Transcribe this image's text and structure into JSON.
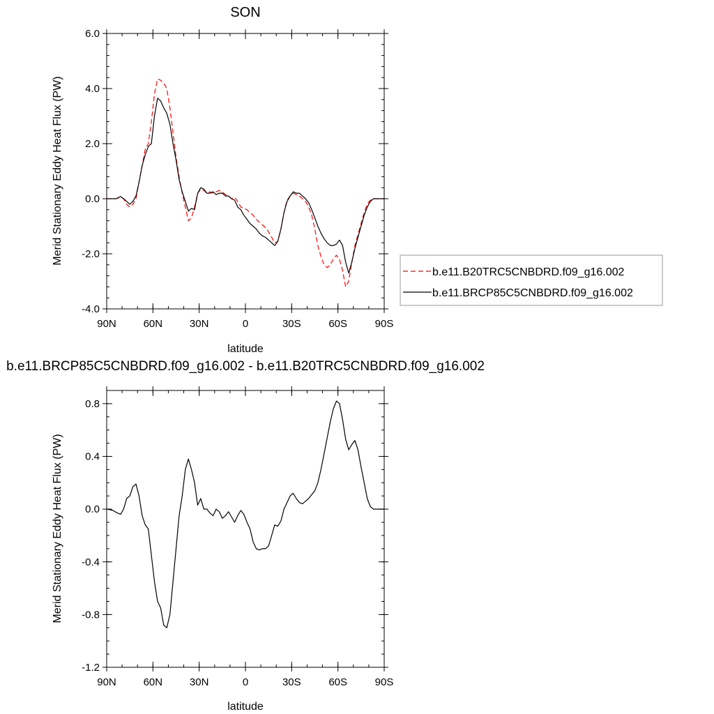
{
  "chart_data": [
    {
      "type": "line",
      "title": "SON",
      "xlabel": "latitude",
      "ylabel": "Merid Stationary Eddy Heat Flux (PW)",
      "xlim": [
        90,
        -90
      ],
      "ylim": [
        -4.0,
        6.0
      ],
      "x_ticks": [
        90,
        60,
        30,
        0,
        -30,
        -60,
        -90
      ],
      "x_tick_labels": [
        "90N",
        "60N",
        "30N",
        "0",
        "30S",
        "60S",
        "90S"
      ],
      "y_ticks": [
        -4,
        -2,
        0,
        2,
        4,
        6
      ],
      "y_tick_labels": [
        "-4.0",
        "-2.0",
        "0.0",
        "2.0",
        "4.0",
        "6.0"
      ],
      "grid": false,
      "legend_position": "right",
      "series": [
        {
          "name": "b.e11.B20TRC5CNBDRD.f09_g16.002",
          "color": "#ff0000",
          "dash": "dashed",
          "x": [
            90,
            84,
            81,
            79,
            77,
            75,
            73,
            71,
            69,
            67,
            65,
            63,
            61,
            59,
            57,
            55,
            53,
            51,
            49,
            47,
            45,
            43,
            41,
            39,
            37,
            35,
            33,
            31,
            29,
            27,
            25,
            23,
            21,
            19,
            17,
            15,
            13,
            11,
            9,
            7,
            5,
            3,
            1,
            -1,
            -3,
            -5,
            -7,
            -9,
            -11,
            -13,
            -15,
            -17,
            -19,
            -21,
            -23,
            -25,
            -27,
            -29,
            -31,
            -33,
            -35,
            -37,
            -39,
            -41,
            -43,
            -45,
            -47,
            -49,
            -51,
            -53,
            -55,
            -57,
            -59,
            -61,
            -63,
            -65,
            -67,
            -69,
            -71,
            -73,
            -75,
            -77,
            -79,
            -81,
            -83,
            -85,
            -87,
            -89,
            -90
          ],
          "y": [
            0.0,
            0.0,
            0.05,
            0.0,
            -0.2,
            -0.3,
            -0.2,
            0.0,
            0.6,
            1.2,
            1.8,
            2.0,
            2.8,
            3.8,
            4.35,
            4.3,
            4.2,
            4.0,
            3.3,
            2.4,
            1.5,
            0.8,
            0.2,
            -0.3,
            -0.8,
            -0.7,
            -0.3,
            0.2,
            0.35,
            0.3,
            0.2,
            0.25,
            0.2,
            0.25,
            0.3,
            0.25,
            0.15,
            0.1,
            0.0,
            0.05,
            -0.1,
            -0.3,
            -0.35,
            -0.4,
            -0.5,
            -0.6,
            -0.75,
            -0.85,
            -0.95,
            -1.05,
            -1.2,
            -1.4,
            -1.6,
            -1.55,
            -1.1,
            -0.5,
            -0.05,
            0.1,
            0.2,
            0.15,
            0.1,
            0.0,
            -0.1,
            -0.3,
            -0.6,
            -1.1,
            -1.7,
            -2.1,
            -2.4,
            -2.5,
            -2.4,
            -2.2,
            -2.05,
            -2.2,
            -2.6,
            -3.2,
            -3.0,
            -2.3,
            -1.7,
            -1.3,
            -0.9,
            -0.5,
            -0.2,
            -0.05,
            0.0,
            0.0,
            0.0,
            0.0,
            0.0
          ]
        },
        {
          "name": "b.e11.BRCP85C5CNBDRD.f09_g16.002",
          "color": "#000000",
          "dash": "solid",
          "x": [
            90,
            84,
            81,
            79,
            77,
            75,
            73,
            71,
            69,
            67,
            65,
            63,
            61,
            59,
            57,
            55,
            53,
            51,
            49,
            47,
            45,
            43,
            41,
            39,
            37,
            35,
            33,
            31,
            29,
            27,
            25,
            23,
            21,
            19,
            17,
            15,
            13,
            11,
            9,
            7,
            5,
            3,
            1,
            -1,
            -3,
            -5,
            -7,
            -9,
            -11,
            -13,
            -15,
            -17,
            -19,
            -21,
            -23,
            -25,
            -27,
            -29,
            -31,
            -33,
            -35,
            -37,
            -39,
            -41,
            -43,
            -45,
            -47,
            -49,
            -51,
            -53,
            -55,
            -57,
            -59,
            -61,
            -63,
            -65,
            -67,
            -69,
            -71,
            -73,
            -75,
            -77,
            -79,
            -81,
            -83,
            -85,
            -87,
            -89,
            -90
          ],
          "y": [
            0.0,
            0.0,
            0.08,
            0.0,
            -0.1,
            -0.2,
            -0.1,
            0.1,
            0.6,
            1.2,
            1.6,
            1.9,
            2.0,
            3.0,
            3.65,
            3.55,
            3.3,
            3.1,
            2.7,
            2.0,
            1.4,
            0.7,
            0.25,
            -0.1,
            -0.45,
            -0.35,
            -0.4,
            0.2,
            0.4,
            0.35,
            0.2,
            0.2,
            0.25,
            0.15,
            0.2,
            0.2,
            0.1,
            0.1,
            0.0,
            -0.05,
            -0.3,
            -0.4,
            -0.6,
            -0.75,
            -0.9,
            -1.0,
            -1.1,
            -1.25,
            -1.35,
            -1.4,
            -1.5,
            -1.6,
            -1.7,
            -1.55,
            -1.1,
            -0.5,
            -0.1,
            0.1,
            0.25,
            0.2,
            0.2,
            0.1,
            0.0,
            -0.15,
            -0.4,
            -0.7,
            -1.0,
            -1.25,
            -1.45,
            -1.6,
            -1.7,
            -1.7,
            -1.65,
            -1.5,
            -1.7,
            -2.3,
            -2.7,
            -2.3,
            -1.8,
            -1.4,
            -1.0,
            -0.6,
            -0.3,
            -0.1,
            0.0,
            0.0,
            0.0,
            0.0,
            0.0
          ]
        }
      ]
    },
    {
      "type": "line",
      "title": "b.e11.BRCP85C5CNBDRD.f09_g16.002 - b.e11.B20TRC5CNBDRD.f09_g16.002",
      "xlabel": "latitude",
      "ylabel": "Merid Stationary Eddy Heat Flux (PW)",
      "xlim": [
        90,
        -90
      ],
      "ylim": [
        -1.2,
        0.9
      ],
      "x_ticks": [
        90,
        60,
        30,
        0,
        -30,
        -60,
        -90
      ],
      "x_tick_labels": [
        "90N",
        "60N",
        "30N",
        "0",
        "30S",
        "60S",
        "90S"
      ],
      "y_ticks": [
        -1.2,
        -0.8,
        -0.4,
        0.0,
        0.4,
        0.8
      ],
      "y_tick_labels": [
        "-1.2",
        "-0.8",
        "-0.4",
        "0.0",
        "0.4",
        "0.8"
      ],
      "grid": false,
      "series": [
        {
          "color": "#000000",
          "dash": "solid",
          "x": [
            90,
            86,
            83,
            81,
            79,
            77,
            75,
            73,
            71,
            69,
            67,
            65,
            63,
            61,
            59,
            57,
            55,
            53,
            51,
            49,
            47,
            45,
            43,
            41,
            39,
            37,
            35,
            33,
            31,
            29,
            27,
            25,
            23,
            21,
            19,
            17,
            15,
            13,
            11,
            9,
            7,
            5,
            3,
            1,
            -1,
            -3,
            -5,
            -7,
            -9,
            -11,
            -13,
            -15,
            -17,
            -19,
            -21,
            -23,
            -25,
            -27,
            -29,
            -31,
            -33,
            -35,
            -37,
            -39,
            -41,
            -43,
            -45,
            -47,
            -49,
            -51,
            -53,
            -55,
            -57,
            -59,
            -61,
            -63,
            -65,
            -67,
            -69,
            -71,
            -73,
            -75,
            -77,
            -79,
            -81,
            -83,
            -85,
            -87,
            -90
          ],
          "y": [
            0.0,
            -0.01,
            -0.03,
            -0.04,
            0.0,
            0.08,
            0.1,
            0.17,
            0.19,
            0.1,
            -0.05,
            -0.12,
            -0.15,
            -0.35,
            -0.55,
            -0.7,
            -0.75,
            -0.88,
            -0.9,
            -0.8,
            -0.55,
            -0.3,
            -0.05,
            0.1,
            0.3,
            0.38,
            0.3,
            0.2,
            0.03,
            0.08,
            0.0,
            0.0,
            -0.03,
            -0.05,
            0.0,
            -0.02,
            -0.07,
            -0.05,
            -0.02,
            -0.06,
            -0.1,
            -0.05,
            -0.01,
            -0.04,
            -0.1,
            -0.15,
            -0.25,
            -0.3,
            -0.31,
            -0.3,
            -0.3,
            -0.28,
            -0.2,
            -0.12,
            -0.13,
            -0.09,
            0.0,
            0.05,
            0.1,
            0.12,
            0.08,
            0.05,
            0.04,
            0.06,
            0.08,
            0.11,
            0.14,
            0.2,
            0.3,
            0.42,
            0.54,
            0.66,
            0.76,
            0.82,
            0.8,
            0.68,
            0.53,
            0.45,
            0.49,
            0.52,
            0.45,
            0.32,
            0.2,
            0.08,
            0.02,
            0.0,
            0.0,
            0.0,
            0.0
          ]
        }
      ]
    }
  ]
}
